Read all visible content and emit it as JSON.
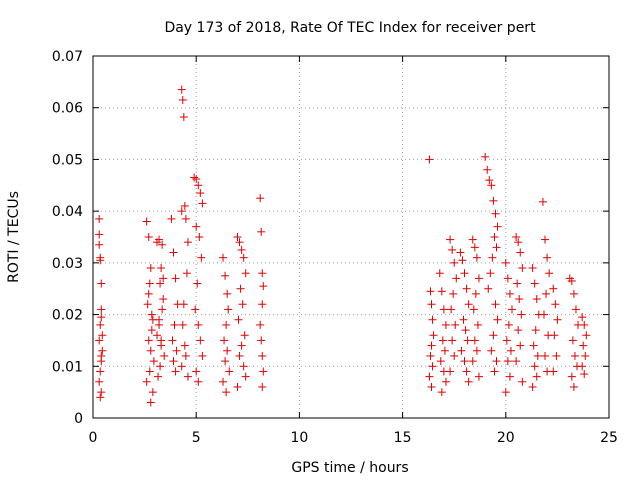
{
  "chart_data": {
    "type": "scatter",
    "title": "Day 173 of 2018, Rate Of TEC Index for receiver pert",
    "xlabel": "GPS time / hours",
    "ylabel": "ROTI / TECUs",
    "xlim": [
      0,
      25
    ],
    "ylim": [
      0,
      0.07
    ],
    "xticks": [
      0,
      5,
      10,
      15,
      20,
      25
    ],
    "xtick_labels": [
      "0",
      "5",
      "10",
      "15",
      "20",
      "25"
    ],
    "yticks": [
      0,
      0.01,
      0.02,
      0.03,
      0.04,
      0.05,
      0.06,
      0.07
    ],
    "ytick_labels": [
      "0",
      "0.01",
      "0.02",
      "0.03",
      "0.04",
      "0.05",
      "0.06",
      "0.07"
    ],
    "grid": true,
    "marker": "+",
    "color": "#e00000",
    "series": [
      {
        "name": "ROTI",
        "x": [
          0.3,
          0.3,
          0.35,
          0.4,
          0.4,
          0.35,
          0.3,
          0.45,
          0.4,
          0.35,
          0.3,
          0.4,
          0.35,
          0.45,
          0.4,
          0.3,
          0.35,
          0.4,
          2.6,
          2.7,
          2.8,
          2.75,
          2.65,
          2.9,
          2.85,
          2.7,
          2.8,
          2.95,
          2.75,
          2.6,
          2.9,
          2.8,
          2.7,
          2.85,
          3.1,
          3.2,
          3.3,
          3.25,
          3.4,
          3.35,
          3.2,
          3.1,
          3.3,
          3.45,
          3.25,
          3.15,
          3.35,
          3.4,
          3.2,
          3.3,
          3.8,
          3.9,
          4.0,
          4.1,
          3.95,
          3.85,
          4.05,
          3.9,
          4.0,
          4.3,
          4.35,
          4.4,
          4.45,
          4.3,
          4.5,
          4.6,
          4.55,
          4.4,
          4.35,
          4.45,
          4.5,
          4.3,
          4.6,
          4.9,
          5.0,
          5.1,
          5.2,
          5.3,
          5.0,
          5.15,
          5.25,
          5.05,
          4.95,
          5.1,
          5.2,
          5.3,
          5.0,
          5.1,
          6.3,
          6.4,
          6.5,
          6.55,
          6.45,
          6.35,
          6.5,
          6.4,
          6.6,
          6.3,
          6.45,
          7.0,
          7.1,
          7.2,
          7.3,
          7.4,
          7.15,
          7.25,
          7.05,
          7.35,
          7.2,
          7.1,
          7.3,
          7.4,
          7.0,
          8.1,
          8.15,
          8.2,
          8.25,
          8.2,
          8.1,
          8.15,
          8.2,
          8.25,
          8.2,
          16.3,
          16.35,
          16.4,
          16.45,
          16.5,
          16.4,
          16.35,
          16.45,
          16.3,
          16.4,
          16.8,
          16.9,
          17.0,
          17.1,
          16.95,
          17.05,
          16.85,
          17.0,
          17.1,
          16.9,
          17.3,
          17.4,
          17.5,
          17.6,
          17.45,
          17.35,
          17.55,
          17.4,
          17.5,
          17.3,
          17.8,
          17.9,
          18.0,
          18.1,
          18.2,
          17.95,
          18.05,
          18.15,
          17.85,
          18.0,
          18.1,
          18.2,
          18.4,
          18.5,
          18.6,
          18.7,
          18.55,
          18.45,
          18.65,
          18.5,
          18.6,
          18.4,
          18.7,
          19.0,
          19.1,
          19.2,
          19.3,
          19.4,
          19.5,
          19.6,
          19.45,
          19.55,
          19.35,
          19.25,
          19.15,
          19.5,
          19.6,
          19.4,
          19.3,
          19.55,
          19.45,
          20.0,
          20.1,
          20.2,
          20.3,
          20.15,
          20.05,
          20.25,
          20.1,
          20.2,
          20.0,
          20.5,
          20.6,
          20.7,
          20.8,
          20.55,
          20.65,
          20.75,
          20.6,
          20.7,
          20.5,
          20.8,
          21.3,
          21.4,
          21.5,
          21.6,
          21.45,
          21.35,
          21.55,
          21.4,
          21.5,
          21.3,
          21.8,
          21.9,
          22.0,
          22.1,
          21.95,
          21.85,
          22.05,
          21.9,
          22.0,
          22.3,
          22.4,
          22.5,
          22.35,
          22.45,
          22.3,
          23.1,
          23.2,
          23.3,
          23.4,
          23.5,
          23.25,
          23.35,
          23.45,
          23.2,
          23.3,
          23.7,
          23.8,
          23.9,
          23.75,
          23.85,
          23.7,
          23.8
        ],
        "y": [
          0.0385,
          0.0355,
          0.031,
          0.026,
          0.021,
          0.018,
          0.015,
          0.013,
          0.011,
          0.009,
          0.007,
          0.005,
          0.004,
          0.016,
          0.012,
          0.0335,
          0.0305,
          0.0195,
          0.038,
          0.035,
          0.029,
          0.026,
          0.022,
          0.019,
          0.017,
          0.015,
          0.013,
          0.011,
          0.009,
          0.007,
          0.005,
          0.003,
          0.024,
          0.02,
          0.034,
          0.0345,
          0.029,
          0.026,
          0.023,
          0.021,
          0.018,
          0.016,
          0.014,
          0.012,
          0.01,
          0.008,
          0.0335,
          0.027,
          0.019,
          0.015,
          0.0385,
          0.032,
          0.027,
          0.022,
          0.018,
          0.015,
          0.013,
          0.011,
          0.009,
          0.0635,
          0.0615,
          0.0582,
          0.041,
          0.04,
          0.0385,
          0.034,
          0.028,
          0.022,
          0.018,
          0.014,
          0.012,
          0.01,
          0.008,
          0.0465,
          0.0462,
          0.045,
          0.0435,
          0.0415,
          0.037,
          0.035,
          0.031,
          0.026,
          0.021,
          0.018,
          0.015,
          0.012,
          0.009,
          0.007,
          0.031,
          0.0275,
          0.024,
          0.021,
          0.018,
          0.015,
          0.013,
          0.011,
          0.009,
          0.007,
          0.005,
          0.035,
          0.034,
          0.0325,
          0.031,
          0.028,
          0.025,
          0.022,
          0.019,
          0.016,
          0.014,
          0.012,
          0.01,
          0.008,
          0.006,
          0.0425,
          0.036,
          0.028,
          0.0255,
          0.022,
          0.018,
          0.015,
          0.012,
          0.009,
          0.006,
          0.05,
          0.0245,
          0.022,
          0.019,
          0.016,
          0.014,
          0.012,
          0.01,
          0.008,
          0.006,
          0.028,
          0.0245,
          0.021,
          0.018,
          0.015,
          0.013,
          0.011,
          0.009,
          0.007,
          0.005,
          0.0345,
          0.0325,
          0.03,
          0.027,
          0.024,
          0.021,
          0.018,
          0.015,
          0.012,
          0.009,
          0.032,
          0.0305,
          0.028,
          0.025,
          0.022,
          0.019,
          0.017,
          0.015,
          0.013,
          0.011,
          0.009,
          0.007,
          0.0345,
          0.033,
          0.031,
          0.027,
          0.024,
          0.021,
          0.018,
          0.015,
          0.013,
          0.011,
          0.008,
          0.0505,
          0.048,
          0.046,
          0.045,
          0.042,
          0.0395,
          0.037,
          0.035,
          0.033,
          0.031,
          0.028,
          0.025,
          0.022,
          0.019,
          0.016,
          0.013,
          0.011,
          0.009,
          0.03,
          0.027,
          0.024,
          0.021,
          0.018,
          0.015,
          0.013,
          0.011,
          0.008,
          0.005,
          0.035,
          0.034,
          0.032,
          0.029,
          0.026,
          0.023,
          0.02,
          0.017,
          0.014,
          0.011,
          0.007,
          0.029,
          0.026,
          0.023,
          0.02,
          0.017,
          0.014,
          0.012,
          0.01,
          0.008,
          0.006,
          0.0418,
          0.0345,
          0.031,
          0.028,
          0.024,
          0.02,
          0.016,
          0.012,
          0.009,
          0.025,
          0.022,
          0.019,
          0.016,
          0.012,
          0.009,
          0.027,
          0.0265,
          0.024,
          0.021,
          0.018,
          0.015,
          0.012,
          0.01,
          0.008,
          0.006,
          0.0195,
          0.018,
          0.016,
          0.014,
          0.012,
          0.01,
          0.0085
        ]
      }
    ]
  }
}
